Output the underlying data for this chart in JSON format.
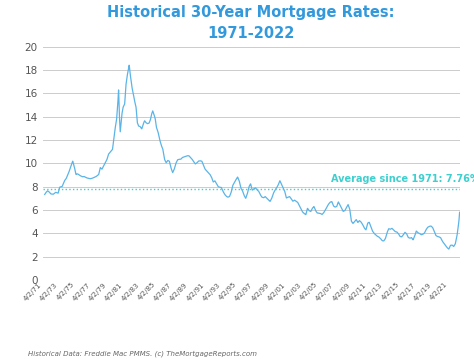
{
  "title_line1": "Historical 30-Year Mortgage Rates:",
  "title_line2": "1971-2022",
  "title_color": "#3399dd",
  "line_color": "#5ab4e8",
  "avg_line_color": "#3ecfcf",
  "avg_value": 7.76,
  "avg_label": "Average since 1971: 7.76%",
  "avg_label_color": "#3ecfcf",
  "ylim": [
    0,
    20
  ],
  "yticks": [
    0,
    2,
    4,
    6,
    8,
    10,
    12,
    14,
    16,
    18,
    20
  ],
  "footnote": "Historical Data: Freddie Mac PMMS. (c) TheMortgageReports.com",
  "background_color": "#ffffff",
  "grid_color": "#cccccc",
  "tick_label_color": "#555555",
  "x_tick_years": [
    1971,
    1973,
    1975,
    1977,
    1979,
    1981,
    1983,
    1985,
    1987,
    1989,
    1991,
    1993,
    1995,
    1997,
    1999,
    2001,
    2003,
    2005,
    2007,
    2009,
    2011,
    2013,
    2015,
    2017,
    2019,
    2021
  ]
}
